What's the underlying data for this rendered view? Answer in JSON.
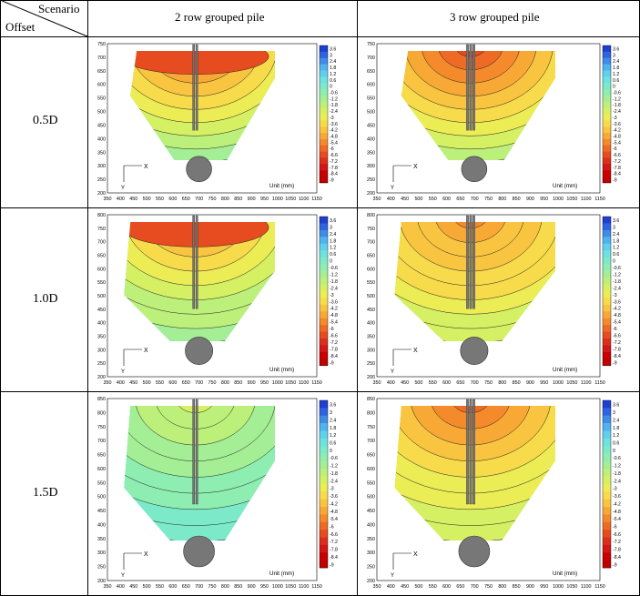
{
  "header": {
    "scenario_label": "Scenario",
    "offset_label": "Offset",
    "columns": [
      "2 row grouped pile",
      "3 row grouped pile"
    ]
  },
  "rows": [
    "0.5D",
    "1.0D",
    "1.5D"
  ],
  "plot_labels": {
    "unit": "Unit (mm)",
    "axis_x": "X",
    "axis_y": "Y"
  },
  "colorbar_ticks": [
    "3.6",
    "3",
    "2.4",
    "1.8",
    "1.2",
    "0.6",
    "0",
    "-0.6",
    "-1.2",
    "-1.8",
    "-2.4",
    "-3",
    "-3.6",
    "-4.2",
    "-4.8",
    "-5.4",
    "-6",
    "-6.6",
    "-7.2",
    "-7.8",
    "-8.4",
    "-9"
  ],
  "colorbar_ticks_alt": [
    "3.6",
    "3",
    "2.4",
    "1.8",
    "1.2",
    "0.6",
    "0",
    "-0.6",
    "-1.2",
    "-1.8",
    "-2.4",
    "-3",
    "-3.6",
    "-4.2",
    "-4.8",
    "-5.4",
    "-6",
    "-6.6",
    "-7.2",
    "-7.8",
    "-8.4",
    "-9"
  ],
  "colorbar_colors": [
    "#1f3fd1",
    "#2f64e0",
    "#3f8ce8",
    "#4fb3ee",
    "#5fd0ee",
    "#6ee2df",
    "#7ceac9",
    "#8eedb1",
    "#a4ef95",
    "#bdf07a",
    "#d6f064",
    "#ecec55",
    "#f7db4a",
    "#f9c540",
    "#f8a935",
    "#f48a2c",
    "#ee6b25",
    "#e64c1f",
    "#dc2f1b",
    "#d11717",
    "#c80000",
    "#c00000"
  ],
  "x_ticks": [
    "350",
    "400",
    "450",
    "500",
    "550",
    "600",
    "650",
    "700",
    "750",
    "800",
    "850",
    "900",
    "950",
    "1000",
    "1050",
    "1100",
    "1150"
  ],
  "y_ticks_r1": [
    "750",
    "700",
    "650",
    "600",
    "550",
    "500",
    "450",
    "400",
    "350",
    "300",
    "250",
    "200"
  ],
  "y_ticks_r2": [
    "800",
    "750",
    "700",
    "650",
    "600",
    "550",
    "500",
    "450",
    "400",
    "350",
    "300",
    "250",
    "200"
  ],
  "y_ticks_r3": [
    "850",
    "800",
    "750",
    "700",
    "650",
    "600",
    "550",
    "500",
    "450",
    "400",
    "350",
    "300",
    "250",
    "200"
  ]
}
